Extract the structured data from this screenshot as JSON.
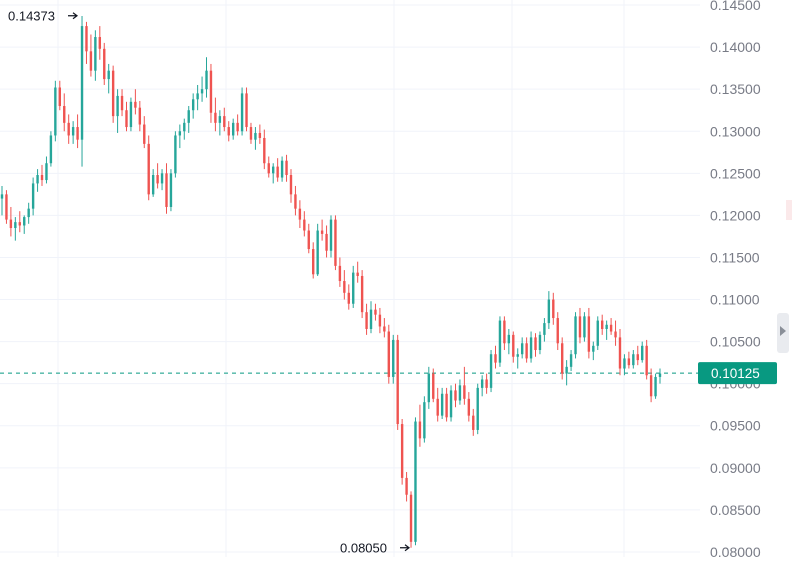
{
  "chart_data": {
    "type": "candlestick",
    "y_axis_ticks": [
      "0.14500",
      "0.14000",
      "0.13500",
      "0.13000",
      "0.12500",
      "0.12000",
      "0.11500",
      "0.11000",
      "0.10500",
      "0.10000",
      "0.09500",
      "0.09000",
      "0.08500",
      "0.08000"
    ],
    "ylim": [
      0.0794,
      0.1456
    ],
    "current_price": "0.10125",
    "current_price_value": 0.10125,
    "high_marker": {
      "label": "0.14373",
      "value": 0.14373
    },
    "low_marker": {
      "label": "0.08050",
      "value": 0.0805
    },
    "up_color": "#26a69a",
    "down_color": "#ef5350",
    "price_line_color": "#089981",
    "grid": true,
    "candles": [
      [
        0.122,
        0.1235,
        0.12,
        0.1225
      ],
      [
        0.1225,
        0.123,
        0.119,
        0.1195
      ],
      [
        0.1195,
        0.121,
        0.1175,
        0.1185
      ],
      [
        0.1185,
        0.1198,
        0.117,
        0.1192
      ],
      [
        0.1192,
        0.1205,
        0.118,
        0.1188
      ],
      [
        0.1188,
        0.12,
        0.1178,
        0.1198
      ],
      [
        0.1198,
        0.1215,
        0.119,
        0.1208
      ],
      [
        0.1208,
        0.1245,
        0.12,
        0.1238
      ],
      [
        0.1238,
        0.1255,
        0.1228,
        0.1248
      ],
      [
        0.1248,
        0.126,
        0.1235,
        0.1242
      ],
      [
        0.1242,
        0.127,
        0.1238,
        0.1262
      ],
      [
        0.1262,
        0.13,
        0.1258,
        0.1295
      ],
      [
        0.1295,
        0.136,
        0.1288,
        0.1352
      ],
      [
        0.1352,
        0.136,
        0.1325,
        0.133
      ],
      [
        0.133,
        0.1345,
        0.13,
        0.131
      ],
      [
        0.131,
        0.132,
        0.1285,
        0.1295
      ],
      [
        0.1295,
        0.1312,
        0.1285,
        0.1305
      ],
      [
        0.1305,
        0.132,
        0.128,
        0.129
      ],
      [
        0.129,
        0.1437,
        0.1258,
        0.1425
      ],
      [
        0.1425,
        0.143,
        0.138,
        0.1395
      ],
      [
        0.1395,
        0.1415,
        0.1365,
        0.1372
      ],
      [
        0.1372,
        0.142,
        0.136,
        0.1412
      ],
      [
        0.1412,
        0.1425,
        0.1385,
        0.1398
      ],
      [
        0.1398,
        0.1405,
        0.1355,
        0.1362
      ],
      [
        0.1362,
        0.138,
        0.1345,
        0.1372
      ],
      [
        0.1372,
        0.1378,
        0.131,
        0.1318
      ],
      [
        0.1318,
        0.135,
        0.1298,
        0.1342
      ],
      [
        0.1342,
        0.135,
        0.1318,
        0.1325
      ],
      [
        0.1325,
        0.1335,
        0.13,
        0.1305
      ],
      [
        0.1305,
        0.134,
        0.13,
        0.1335
      ],
      [
        0.1335,
        0.135,
        0.132,
        0.1328
      ],
      [
        0.1328,
        0.1336,
        0.13,
        0.1308
      ],
      [
        0.1308,
        0.1318,
        0.128,
        0.1285
      ],
      [
        0.1285,
        0.1295,
        0.1218,
        0.1225
      ],
      [
        0.1225,
        0.1255,
        0.1222,
        0.1248
      ],
      [
        0.1248,
        0.1262,
        0.1232,
        0.1238
      ],
      [
        0.1238,
        0.1255,
        0.123,
        0.125
      ],
      [
        0.125,
        0.1262,
        0.1202,
        0.121
      ],
      [
        0.121,
        0.1255,
        0.1205,
        0.125
      ],
      [
        0.125,
        0.13,
        0.1245,
        0.1295
      ],
      [
        0.1295,
        0.1308,
        0.128,
        0.13
      ],
      [
        0.13,
        0.1315,
        0.129,
        0.131
      ],
      [
        0.131,
        0.133,
        0.1298,
        0.1325
      ],
      [
        0.1325,
        0.1345,
        0.1315,
        0.1338
      ],
      [
        0.1338,
        0.1355,
        0.1325,
        0.1345
      ],
      [
        0.1345,
        0.1365,
        0.1335,
        0.135
      ],
      [
        0.135,
        0.1388,
        0.134,
        0.1372
      ],
      [
        0.1372,
        0.138,
        0.131,
        0.1322
      ],
      [
        0.1322,
        0.134,
        0.13,
        0.131
      ],
      [
        0.131,
        0.1325,
        0.1295,
        0.1318
      ],
      [
        0.1318,
        0.1328,
        0.13,
        0.1305
      ],
      [
        0.1305,
        0.1312,
        0.1288,
        0.1295
      ],
      [
        0.1295,
        0.1315,
        0.129,
        0.131
      ],
      [
        0.131,
        0.132,
        0.1295,
        0.13
      ],
      [
        0.13,
        0.1352,
        0.1295,
        0.1345
      ],
      [
        0.1345,
        0.1352,
        0.13,
        0.1305
      ],
      [
        0.1305,
        0.131,
        0.1285,
        0.129
      ],
      [
        0.129,
        0.1305,
        0.1278,
        0.1298
      ],
      [
        0.1298,
        0.1308,
        0.1285,
        0.1292
      ],
      [
        0.1292,
        0.1302,
        0.1255,
        0.1262
      ],
      [
        0.1262,
        0.127,
        0.1245,
        0.125
      ],
      [
        0.125,
        0.1262,
        0.1238,
        0.1258
      ],
      [
        0.1258,
        0.1268,
        0.124,
        0.1245
      ],
      [
        0.1245,
        0.127,
        0.124,
        0.1265
      ],
      [
        0.1265,
        0.1272,
        0.124,
        0.1248
      ],
      [
        0.1248,
        0.1255,
        0.1215,
        0.1225
      ],
      [
        0.1225,
        0.1235,
        0.12,
        0.1208
      ],
      [
        0.1208,
        0.1218,
        0.1185,
        0.1195
      ],
      [
        0.1195,
        0.1205,
        0.1175,
        0.1182
      ],
      [
        0.1182,
        0.119,
        0.1155,
        0.116
      ],
      [
        0.116,
        0.1168,
        0.1125,
        0.113
      ],
      [
        0.113,
        0.119,
        0.1128,
        0.1182
      ],
      [
        0.1182,
        0.1195,
        0.117,
        0.1178
      ],
      [
        0.1178,
        0.1188,
        0.115,
        0.1158
      ],
      [
        0.1158,
        0.12,
        0.115,
        0.1195
      ],
      [
        0.1195,
        0.12,
        0.1135,
        0.114
      ],
      [
        0.114,
        0.115,
        0.1115,
        0.1122
      ],
      [
        0.1122,
        0.1135,
        0.11,
        0.1108
      ],
      [
        0.1108,
        0.1118,
        0.1088,
        0.1095
      ],
      [
        0.1095,
        0.114,
        0.109,
        0.1132
      ],
      [
        0.1132,
        0.1145,
        0.112,
        0.1128
      ],
      [
        0.1128,
        0.1135,
        0.1078,
        0.1085
      ],
      [
        0.1085,
        0.1095,
        0.1058,
        0.1065
      ],
      [
        0.1065,
        0.1098,
        0.106,
        0.1088
      ],
      [
        0.1088,
        0.1095,
        0.1075,
        0.1082
      ],
      [
        0.1082,
        0.109,
        0.106,
        0.1068
      ],
      [
        0.1068,
        0.1078,
        0.1055,
        0.1062
      ],
      [
        0.1062,
        0.107,
        0.1,
        0.1008
      ],
      [
        0.1008,
        0.1058,
        0.1,
        0.1052
      ],
      [
        0.1052,
        0.1058,
        0.0945,
        0.0952
      ],
      [
        0.0952,
        0.0958,
        0.088,
        0.0888
      ],
      [
        0.0888,
        0.0895,
        0.086,
        0.0868
      ],
      [
        0.0868,
        0.0872,
        0.0805,
        0.0812
      ],
      [
        0.0812,
        0.096,
        0.0808,
        0.0955
      ],
      [
        0.0955,
        0.0975,
        0.0925,
        0.0935
      ],
      [
        0.0935,
        0.0985,
        0.093,
        0.0978
      ],
      [
        0.0978,
        0.102,
        0.097,
        0.1012
      ],
      [
        0.1012,
        0.1018,
        0.0978,
        0.0982
      ],
      [
        0.0982,
        0.0995,
        0.0955,
        0.0962
      ],
      [
        0.0962,
        0.0995,
        0.0958,
        0.0988
      ],
      [
        0.0988,
        0.0995,
        0.0955,
        0.096
      ],
      [
        0.096,
        0.0998,
        0.0955,
        0.0992
      ],
      [
        0.0992,
        0.1,
        0.0972,
        0.098
      ],
      [
        0.098,
        0.1005,
        0.0975,
        0.0998
      ],
      [
        0.0998,
        0.102,
        0.0975,
        0.0982
      ],
      [
        0.0982,
        0.099,
        0.0955,
        0.0962
      ],
      [
        0.0962,
        0.097,
        0.0938,
        0.0945
      ],
      [
        0.0945,
        0.1,
        0.094,
        0.0995
      ],
      [
        0.0995,
        0.101,
        0.0985,
        0.1005
      ],
      [
        0.1005,
        0.1012,
        0.0988,
        0.0995
      ],
      [
        0.0995,
        0.104,
        0.099,
        0.1035
      ],
      [
        0.1035,
        0.1045,
        0.1018,
        0.1025
      ],
      [
        0.1025,
        0.108,
        0.102,
        0.1075
      ],
      [
        0.1075,
        0.108,
        0.104,
        0.1048
      ],
      [
        0.1048,
        0.1065,
        0.1035,
        0.1058
      ],
      [
        0.1058,
        0.1062,
        0.1025,
        0.1032
      ],
      [
        0.1032,
        0.1042,
        0.1018,
        0.1035
      ],
      [
        0.1035,
        0.1055,
        0.103,
        0.1048
      ],
      [
        0.1048,
        0.1055,
        0.1025,
        0.103
      ],
      [
        0.103,
        0.1062,
        0.1025,
        0.1055
      ],
      [
        0.1055,
        0.106,
        0.1032,
        0.104
      ],
      [
        0.104,
        0.1062,
        0.1035,
        0.1058
      ],
      [
        0.1058,
        0.1078,
        0.105,
        0.1072
      ],
      [
        0.1072,
        0.111,
        0.1065,
        0.11
      ],
      [
        0.11,
        0.1108,
        0.107,
        0.1078
      ],
      [
        0.1078,
        0.1085,
        0.104,
        0.1048
      ],
      [
        0.1048,
        0.1055,
        0.1005,
        0.1012
      ],
      [
        0.1012,
        0.1028,
        0.0998,
        0.102
      ],
      [
        0.102,
        0.104,
        0.1015,
        0.1035
      ],
      [
        0.1035,
        0.1085,
        0.103,
        0.108
      ],
      [
        0.108,
        0.109,
        0.1048,
        0.1055
      ],
      [
        0.1055,
        0.1085,
        0.105,
        0.108
      ],
      [
        0.108,
        0.109,
        0.103,
        0.1038
      ],
      [
        0.1038,
        0.105,
        0.1028,
        0.1045
      ],
      [
        0.1045,
        0.108,
        0.104,
        0.1075
      ],
      [
        0.1075,
        0.1082,
        0.1058,
        0.1065
      ],
      [
        0.1065,
        0.1075,
        0.1052,
        0.107
      ],
      [
        0.107,
        0.1078,
        0.1058,
        0.1062
      ],
      [
        0.1062,
        0.1075,
        0.1045,
        0.1055
      ],
      [
        0.1055,
        0.1065,
        0.101,
        0.1018
      ],
      [
        0.1018,
        0.1035,
        0.101,
        0.103
      ],
      [
        0.103,
        0.1038,
        0.1018,
        0.1022
      ],
      [
        0.1022,
        0.104,
        0.1018,
        0.1035
      ],
      [
        0.1035,
        0.1045,
        0.1022,
        0.1028
      ],
      [
        0.1028,
        0.105,
        0.1025,
        0.1045
      ],
      [
        0.1045,
        0.1052,
        0.1005,
        0.101
      ],
      [
        0.101,
        0.1018,
        0.0978,
        0.0985
      ],
      [
        0.0985,
        0.1012,
        0.0982,
        0.1008
      ],
      [
        0.1008,
        0.1018,
        0.1,
        0.1012
      ]
    ]
  }
}
